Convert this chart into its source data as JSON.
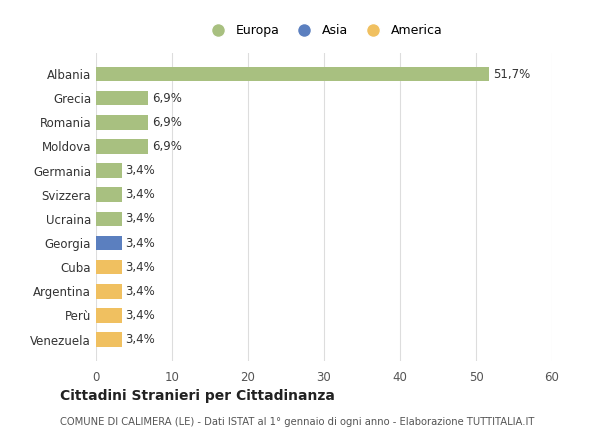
{
  "countries": [
    "Venezuela",
    "Perù",
    "Argentina",
    "Cuba",
    "Georgia",
    "Ucraina",
    "Svizzera",
    "Germania",
    "Moldova",
    "Romania",
    "Grecia",
    "Albania"
  ],
  "values": [
    3.4,
    3.4,
    3.4,
    3.4,
    3.4,
    3.4,
    3.4,
    3.4,
    6.9,
    6.9,
    6.9,
    51.7
  ],
  "colors": [
    "#f0c060",
    "#f0c060",
    "#f0c060",
    "#f0c060",
    "#5b7fbf",
    "#a8c080",
    "#a8c080",
    "#a8c080",
    "#a8c080",
    "#a8c080",
    "#a8c080",
    "#a8c080"
  ],
  "labels": [
    "3,4%",
    "3,4%",
    "3,4%",
    "3,4%",
    "3,4%",
    "3,4%",
    "3,4%",
    "3,4%",
    "6,9%",
    "6,9%",
    "6,9%",
    "51,7%"
  ],
  "legend": [
    {
      "label": "Europa",
      "color": "#a8c080"
    },
    {
      "label": "Asia",
      "color": "#5b7fbf"
    },
    {
      "label": "America",
      "color": "#f0c060"
    }
  ],
  "xlim": [
    0,
    60
  ],
  "xticks": [
    0,
    10,
    20,
    30,
    40,
    50,
    60
  ],
  "title": "Cittadini Stranieri per Cittadinanza",
  "subtitle": "COMUNE DI CALIMERA (LE) - Dati ISTAT al 1° gennaio di ogni anno - Elaborazione TUTTITALIA.IT",
  "background_color": "#ffffff",
  "grid_color": "#dddddd"
}
